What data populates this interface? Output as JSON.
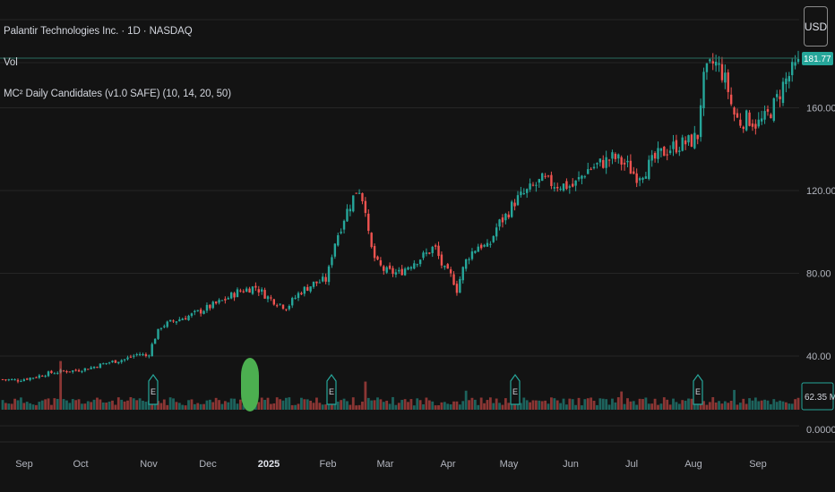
{
  "legend": {
    "symbol": "Palantir Technologies Inc. · 1D · NASDAQ",
    "volume": "Vol",
    "indicator": "MC² Daily Candidates (v1.0 SAFE) (10, 14, 20, 50)"
  },
  "currency_button": "USD",
  "colors": {
    "background": "#131313",
    "up": "#26a69a",
    "down": "#ef5350",
    "grid": "#262626",
    "text": "#d1d4dc",
    "price_line": "#2a6e5f",
    "marker": "#4caf50",
    "earnings_border": "#26a69a"
  },
  "icons": {
    "earnings": "earnings-e-flag-icon",
    "signal": "signal-marker-icon"
  },
  "chart_data": [
    {
      "type": "candlestick",
      "y_axis": {
        "ticks": [
          "160.00",
          "120.00",
          "80.00",
          "40.00"
        ],
        "tick_values": [
          160,
          120,
          80,
          40
        ]
      },
      "x_axis": {
        "labels": [
          "Sep",
          "Oct",
          "Nov",
          "Dec",
          "2025",
          "Feb",
          "Mar",
          "Apr",
          "May",
          "Jun",
          "Jul",
          "Aug",
          "Sep"
        ]
      },
      "grid": true,
      "price_labels": {
        "last_price": "181.77"
      },
      "series_anchors": [
        [
          0,
          28.8
        ],
        [
          20,
          28.3
        ],
        [
          40,
          30
        ],
        [
          55,
          31.8
        ],
        [
          70,
          32.6
        ],
        [
          85,
          33
        ],
        [
          100,
          34.2
        ],
        [
          120,
          36.8
        ],
        [
          140,
          38.5
        ],
        [
          155,
          41.2
        ],
        [
          165,
          39.7
        ],
        [
          172,
          48.2
        ],
        [
          180,
          54.5
        ],
        [
          195,
          57
        ],
        [
          215,
          60
        ],
        [
          235,
          64
        ],
        [
          250,
          67
        ],
        [
          265,
          71
        ],
        [
          285,
          73.5
        ],
        [
          300,
          68
        ],
        [
          320,
          63.5
        ],
        [
          335,
          71
        ],
        [
          350,
          75
        ],
        [
          365,
          77
        ],
        [
          372,
          93
        ],
        [
          385,
          108
        ],
        [
          400,
          122
        ],
        [
          408,
          112
        ],
        [
          412,
          95
        ],
        [
          420,
          85
        ],
        [
          430,
          81
        ],
        [
          445,
          80
        ],
        [
          460,
          85
        ],
        [
          475,
          89
        ],
        [
          485,
          93
        ],
        [
          495,
          82
        ],
        [
          505,
          78
        ],
        [
          510,
          72
        ],
        [
          515,
          80
        ],
        [
          522,
          88
        ],
        [
          535,
          94
        ],
        [
          545,
          92
        ],
        [
          555,
          103
        ],
        [
          565,
          108
        ],
        [
          575,
          115
        ],
        [
          590,
          120
        ],
        [
          605,
          125
        ],
        [
          620,
          123
        ],
        [
          640,
          122
        ],
        [
          655,
          130
        ],
        [
          670,
          133
        ],
        [
          685,
          136
        ],
        [
          700,
          132
        ],
        [
          710,
          127
        ],
        [
          720,
          130
        ],
        [
          735,
          137
        ],
        [
          750,
          141
        ],
        [
          765,
          143
        ],
        [
          772,
          144
        ],
        [
          780,
          147
        ],
        [
          783,
          170
        ],
        [
          790,
          178
        ],
        [
          797,
          182
        ],
        [
          805,
          178
        ],
        [
          812,
          170
        ],
        [
          818,
          158
        ],
        [
          825,
          153
        ],
        [
          835,
          155
        ],
        [
          845,
          152
        ],
        [
          855,
          155
        ],
        [
          865,
          162
        ],
        [
          875,
          172
        ],
        [
          885,
          178
        ],
        [
          892,
          181
        ]
      ]
    },
    {
      "type": "bar",
      "name": "Vol",
      "last_value_label": "62.35 M",
      "y_axis_label": "0.0000",
      "spikes": [
        [
          67,
          3.2
        ],
        [
          279,
          1.9
        ],
        [
          407,
          1.85
        ],
        [
          519,
          1.25
        ],
        [
          578,
          1.3
        ],
        [
          692,
          1.2
        ],
        [
          820,
          1.3
        ],
        [
          892,
          0.78
        ]
      ],
      "earnings_x": [
        171,
        370,
        575,
        779
      ],
      "signal_marker_x": 279
    }
  ]
}
